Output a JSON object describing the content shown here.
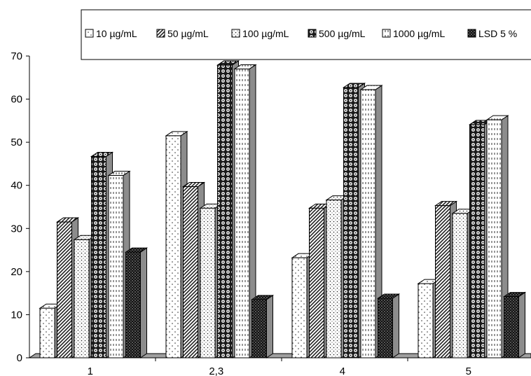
{
  "chart_data": {
    "type": "bar",
    "categories": [
      "1",
      "2,3",
      "4",
      "5"
    ],
    "series": [
      {
        "name": "10 µg/mL",
        "values": [
          11.5,
          51.5,
          23.2,
          17.2
        ],
        "pattern": "dots-sparse"
      },
      {
        "name": "50 µg/mL",
        "values": [
          31.5,
          39.7,
          34.7,
          35.3
        ],
        "pattern": "diagonal"
      },
      {
        "name": "100 µg/mL",
        "values": [
          27.4,
          34.7,
          36.6,
          33.5
        ],
        "pattern": "dots-medium"
      },
      {
        "name": "500 µg/mL",
        "values": [
          46.7,
          67.9,
          62.7,
          54.1
        ],
        "pattern": "circles"
      },
      {
        "name": "1000 µg/mL",
        "values": [
          42.3,
          67.0,
          62.2,
          55.2
        ],
        "pattern": "dash-vertical"
      },
      {
        "name": "LSD 5 %",
        "values": [
          24.5,
          13.5,
          13.8,
          14.2
        ],
        "pattern": "dense-dark"
      }
    ],
    "yticks": [
      0,
      10,
      20,
      30,
      40,
      50,
      60,
      70
    ],
    "ylim": [
      0,
      70
    ],
    "xlabel": "",
    "ylabel": "",
    "title": "",
    "legend_position": "top",
    "grid": false
  }
}
